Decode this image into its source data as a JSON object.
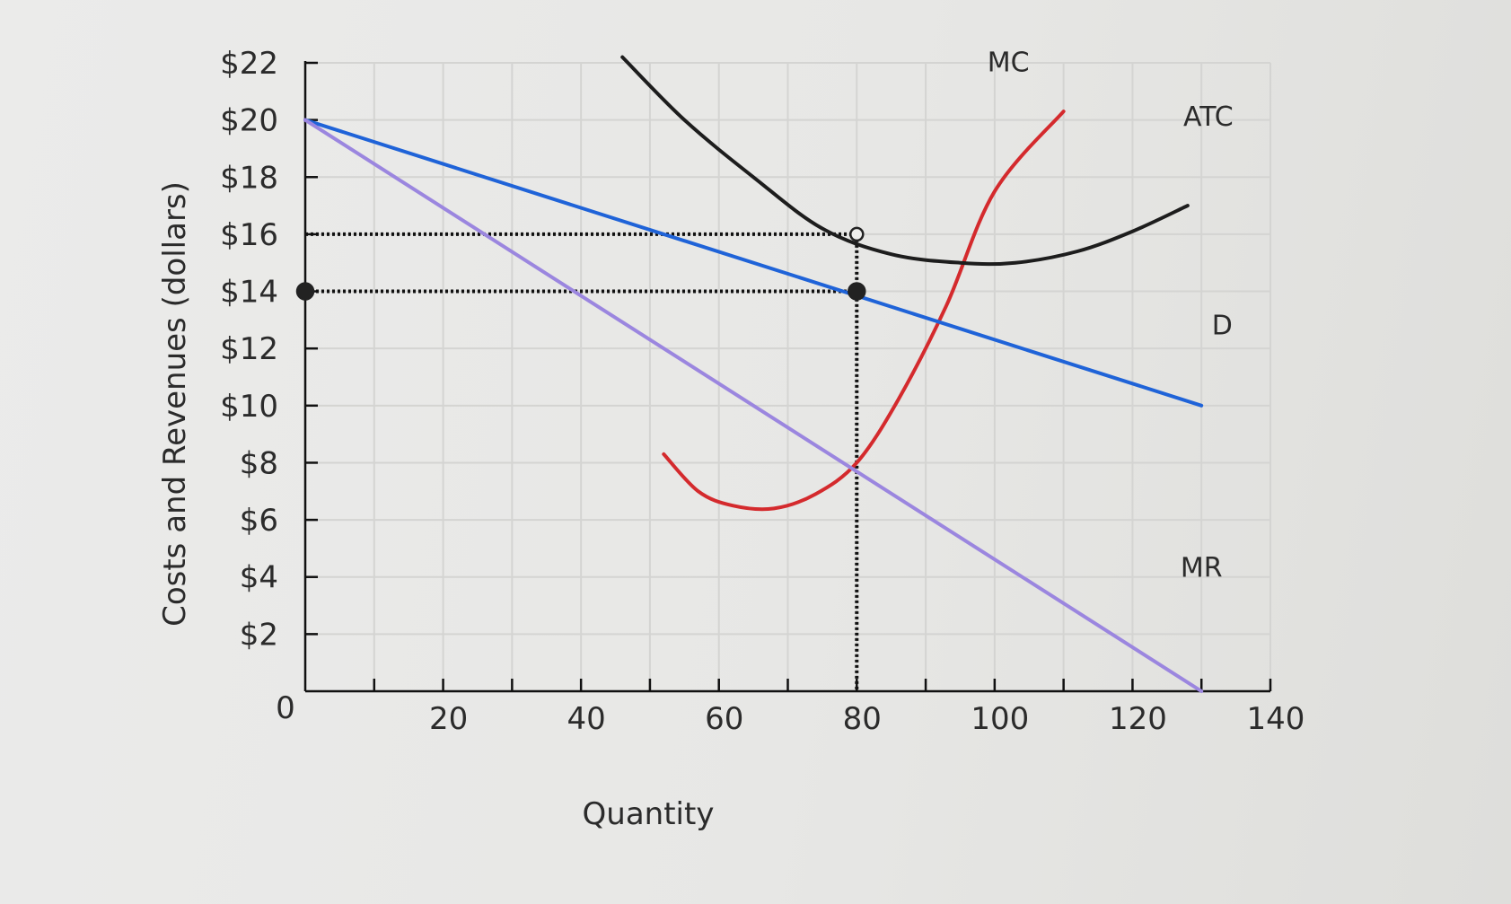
{
  "chart_data": {
    "type": "line",
    "ylabel": "Costs and Revenues (dollars)",
    "xlabel": "Quantity",
    "origin_label": "0",
    "xlim": [
      0,
      140
    ],
    "ylim": [
      0,
      22
    ],
    "x_ticks": [
      20,
      40,
      60,
      80,
      100,
      120,
      140
    ],
    "x_tick_labels": [
      "20",
      "40",
      "60",
      "80",
      "100",
      "120",
      "140"
    ],
    "y_ticks": [
      2,
      4,
      6,
      8,
      10,
      12,
      14,
      16,
      18,
      20,
      22
    ],
    "y_tick_labels": [
      "$2",
      "$4",
      "$6",
      "$8",
      "$10",
      "$12",
      "$14",
      "$16",
      "$18",
      "$20",
      "$22"
    ],
    "grid": true,
    "series": [
      {
        "name": "MC",
        "color": "#d42a2d",
        "points": [
          [
            52,
            8.3
          ],
          [
            57,
            7
          ],
          [
            62,
            6.5
          ],
          [
            68,
            6.4
          ],
          [
            74,
            6.9
          ],
          [
            80,
            8
          ],
          [
            86,
            10.2
          ],
          [
            93,
            13.5
          ],
          [
            100,
            17.5
          ],
          [
            110,
            20.3
          ]
        ]
      },
      {
        "name": "ATC",
        "color": "#1d1d1d",
        "points": [
          [
            46,
            22.2
          ],
          [
            55,
            20
          ],
          [
            65,
            18
          ],
          [
            75,
            16.2
          ],
          [
            85,
            15.3
          ],
          [
            95,
            15
          ],
          [
            103,
            15
          ],
          [
            112,
            15.4
          ],
          [
            120,
            16.1
          ],
          [
            128,
            17
          ]
        ]
      },
      {
        "name": "D",
        "color": "#1f63d8",
        "points": [
          [
            0,
            20
          ],
          [
            130,
            10
          ]
        ]
      },
      {
        "name": "MR",
        "color": "#9b86df",
        "points": [
          [
            0,
            20
          ],
          [
            130,
            0
          ]
        ]
      }
    ],
    "markers": [
      {
        "x": 80,
        "y": 14,
        "filled": true
      },
      {
        "x": 80,
        "y": 16,
        "filled": false
      },
      {
        "x": 0,
        "y": 14,
        "filled": true
      }
    ],
    "guides": [
      {
        "from": [
          0,
          16
        ],
        "to": [
          80,
          16
        ]
      },
      {
        "from": [
          0,
          14
        ],
        "to": [
          80,
          14
        ]
      },
      {
        "from": [
          80,
          16
        ],
        "to": [
          80,
          0
        ]
      }
    ],
    "label_anchors": {
      "MC": [
        102,
        21.7
      ],
      "ATC": [
        131,
        19.8
      ],
      "D": [
        133,
        12.5
      ],
      "MR": [
        130,
        4
      ]
    }
  }
}
